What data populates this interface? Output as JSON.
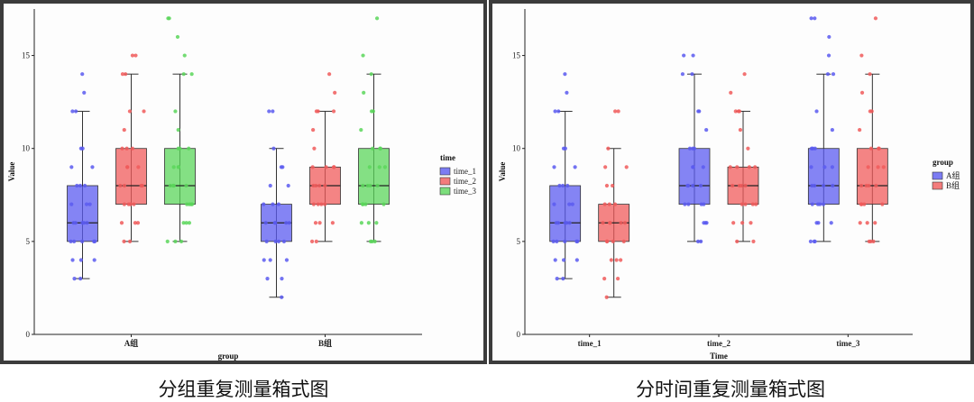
{
  "captions": {
    "left": "分组重复测量箱式图",
    "right": "分时间重复测量箱式图"
  },
  "chart_data": [
    {
      "type": "box",
      "ylabel": "Value",
      "xlabel": "group",
      "ylim": [
        0,
        17.5
      ],
      "yticks": [
        0,
        5,
        10,
        15
      ],
      "categories": [
        "A组",
        "B组"
      ],
      "legend": {
        "title": "time",
        "position": "right",
        "entries": [
          "time_1",
          "time_2",
          "time_3"
        ]
      },
      "colors": [
        "#5b5bf0",
        "#f05b5b",
        "#5bd65b"
      ],
      "boxes": [
        {
          "category": "A组",
          "series": "time_1",
          "min": 3,
          "q1": 5,
          "median": 6,
          "q3": 8,
          "max": 12,
          "points": [
            14,
            13,
            12,
            12,
            10,
            10,
            9,
            9,
            8,
            8,
            8,
            7,
            7,
            7,
            6,
            6,
            6,
            6,
            6,
            5,
            5,
            5,
            5,
            5,
            4,
            4,
            4,
            3,
            3
          ]
        },
        {
          "category": "A组",
          "series": "time_2",
          "min": 5,
          "q1": 7,
          "median": 8,
          "q3": 10,
          "max": 14,
          "points": [
            15,
            15,
            14,
            14,
            12,
            12,
            11,
            10,
            10,
            10,
            9,
            9,
            9,
            8,
            8,
            8,
            8,
            7,
            7,
            7,
            7,
            6,
            6,
            6,
            5,
            5
          ]
        },
        {
          "category": "A组",
          "series": "time_3",
          "min": 5,
          "q1": 7,
          "median": 8,
          "q3": 10,
          "max": 14,
          "points": [
            17,
            17,
            16,
            15,
            14,
            14,
            12,
            11,
            10,
            10,
            10,
            9,
            9,
            9,
            8,
            8,
            8,
            8,
            7,
            7,
            7,
            7,
            6,
            6,
            6,
            5,
            5,
            5
          ]
        },
        {
          "category": "B组",
          "series": "time_1",
          "min": 2,
          "q1": 5,
          "median": 6,
          "q3": 7,
          "max": 10,
          "points": [
            12,
            12,
            10,
            9,
            9,
            8,
            8,
            7,
            7,
            7,
            6,
            6,
            6,
            6,
            6,
            5,
            5,
            5,
            5,
            4,
            4,
            4,
            3,
            3,
            2
          ]
        },
        {
          "category": "B组",
          "series": "time_2",
          "min": 5,
          "q1": 7,
          "median": 8,
          "q3": 9,
          "max": 12,
          "points": [
            14,
            13,
            12,
            12,
            12,
            11,
            10,
            9,
            9,
            9,
            9,
            8,
            8,
            8,
            8,
            7,
            7,
            7,
            7,
            6,
            6,
            6,
            5,
            5
          ]
        },
        {
          "category": "B组",
          "series": "time_3",
          "min": 5,
          "q1": 7,
          "median": 8,
          "q3": 10,
          "max": 14,
          "points": [
            17,
            15,
            14,
            13,
            12,
            12,
            11,
            10,
            10,
            10,
            9,
            9,
            9,
            8,
            8,
            8,
            8,
            7,
            7,
            7,
            7,
            6,
            6,
            6,
            5,
            5,
            5
          ]
        }
      ]
    },
    {
      "type": "box",
      "ylabel": "Value",
      "xlabel": "Time",
      "ylim": [
        0,
        17.5
      ],
      "yticks": [
        0,
        5,
        10,
        15
      ],
      "categories": [
        "time_1",
        "time_2",
        "time_3"
      ],
      "legend": {
        "title": "group",
        "position": "right",
        "entries": [
          "A组",
          "B组"
        ]
      },
      "colors": [
        "#5b5bf0",
        "#f05b5b"
      ],
      "boxes": [
        {
          "category": "time_1",
          "series": "A组",
          "min": 3,
          "q1": 5,
          "median": 6,
          "q3": 8,
          "max": 12,
          "points": [
            14,
            13,
            12,
            12,
            10,
            10,
            9,
            9,
            8,
            8,
            8,
            7,
            7,
            7,
            6,
            6,
            6,
            6,
            6,
            5,
            5,
            5,
            5,
            5,
            4,
            4,
            4,
            3,
            3
          ]
        },
        {
          "category": "time_1",
          "series": "B组",
          "min": 2,
          "q1": 5,
          "median": 6,
          "q3": 7,
          "max": 10,
          "points": [
            12,
            12,
            10,
            9,
            9,
            8,
            8,
            7,
            7,
            7,
            6,
            6,
            6,
            6,
            6,
            5,
            5,
            5,
            5,
            4,
            4,
            4,
            3,
            3,
            2
          ]
        },
        {
          "category": "time_2",
          "series": "A组",
          "min": 5,
          "q1": 7,
          "median": 8,
          "q3": 10,
          "max": 14,
          "points": [
            15,
            15,
            14,
            14,
            12,
            12,
            11,
            10,
            10,
            10,
            9,
            9,
            9,
            8,
            8,
            8,
            8,
            7,
            7,
            7,
            7,
            6,
            6,
            6,
            5,
            5
          ]
        },
        {
          "category": "time_2",
          "series": "B组",
          "min": 5,
          "q1": 7,
          "median": 8,
          "q3": 9,
          "max": 12,
          "points": [
            14,
            13,
            12,
            12,
            12,
            11,
            10,
            9,
            9,
            9,
            9,
            8,
            8,
            8,
            8,
            7,
            7,
            7,
            7,
            6,
            6,
            6,
            5,
            5
          ]
        },
        {
          "category": "time_3",
          "series": "A组",
          "min": 5,
          "q1": 7,
          "median": 8,
          "q3": 10,
          "max": 14,
          "points": [
            17,
            17,
            16,
            15,
            14,
            14,
            12,
            11,
            10,
            10,
            10,
            9,
            9,
            9,
            8,
            8,
            8,
            8,
            7,
            7,
            7,
            7,
            6,
            6,
            6,
            5,
            5,
            5
          ]
        },
        {
          "category": "time_3",
          "series": "B组",
          "min": 5,
          "q1": 7,
          "median": 8,
          "q3": 10,
          "max": 14,
          "points": [
            17,
            15,
            14,
            13,
            12,
            12,
            11,
            10,
            10,
            10,
            9,
            9,
            9,
            8,
            8,
            8,
            8,
            7,
            7,
            7,
            7,
            6,
            6,
            6,
            5,
            5,
            5
          ]
        }
      ]
    }
  ]
}
